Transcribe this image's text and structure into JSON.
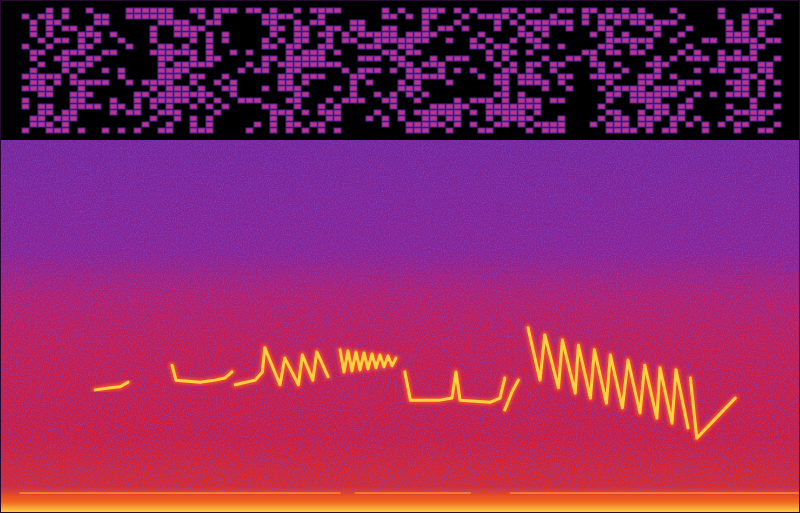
{
  "chart_data": {
    "type": "spectrogram",
    "tick_labels": false,
    "xlim": [
      0,
      100
    ],
    "ylim": [
      0,
      100
    ],
    "series": [
      {
        "color": "#ffd040",
        "x": [
          11.9,
          13.8,
          15,
          16
        ],
        "values": [
          24,
          24.4,
          24.6,
          25.5
        ]
      },
      {
        "color": "#ffd040",
        "x": [
          21.5,
          22,
          25,
          26.9,
          28.1,
          29
        ],
        "values": [
          28.8,
          25.9,
          25.5,
          25.9,
          26.3,
          27.5
        ]
      },
      {
        "color": "#ffd040",
        "x": [
          29.4,
          31.9,
          32.8,
          33.1,
          35,
          35.6,
          37.3,
          37.8,
          39.1,
          39.6,
          41
        ],
        "values": [
          25,
          25.9,
          27.5,
          32.2,
          25,
          30.2,
          25,
          30.8,
          25.9,
          31.4,
          26.6
        ]
      },
      {
        "color": "#ffd040",
        "x": [
          42.5,
          43,
          43.5,
          44,
          44.5,
          45,
          45.5,
          46,
          46.5,
          47,
          47.5,
          48,
          48.5,
          49,
          49.5
        ],
        "values": [
          31.8,
          27.5,
          31.6,
          27.7,
          31.4,
          27.9,
          31.2,
          28.1,
          31,
          28.3,
          30.8,
          28.5,
          30.6,
          28.7,
          30.2
        ]
      },
      {
        "color": "#ffd040",
        "x": [
          50.6,
          51.3,
          55,
          56.5,
          57,
          57.5,
          61.3,
          62.5,
          63.1
        ],
        "values": [
          27.5,
          22,
          22,
          22.4,
          27.5,
          22,
          21.6,
          22.4,
          26.3
        ]
      },
      {
        "color": "#ffd040",
        "x": [
          63.1,
          64,
          64.8
        ],
        "values": [
          20.1,
          23.6,
          25.9
        ]
      },
      {
        "color": "#ffd040",
        "x": [
          66,
          67.5,
          68.1,
          69.8,
          70.3,
          71.9,
          72.3,
          73.8,
          74.3,
          75.8,
          76.3,
          77.8,
          78.5,
          80,
          80.6,
          82.1,
          82.5,
          84,
          84.5,
          86
        ],
        "values": [
          36.1,
          25.9,
          34.7,
          24.4,
          33.7,
          23.4,
          32.7,
          22.4,
          31.8,
          21.4,
          30.8,
          20.5,
          29.8,
          19.5,
          28.8,
          18.5,
          28.3,
          17.5,
          27.9,
          16.6
        ]
      },
      {
        "color": "#ffd040",
        "x": [
          86.3,
          87.1,
          91.9
        ],
        "values": [
          26.3,
          14.6,
          22.4
        ]
      },
      {
        "color": "#ff8a30",
        "x": [
          2.5,
          42.5
        ],
        "values": [
          3.9,
          3.9
        ]
      },
      {
        "color": "#ff8a30",
        "x": [
          44.4,
          58.8
        ],
        "values": [
          3.9,
          3.9
        ]
      },
      {
        "color": "#ff8a30",
        "x": [
          63.8,
          100
        ],
        "values": [
          3.9,
          3.9
        ]
      }
    ]
  }
}
